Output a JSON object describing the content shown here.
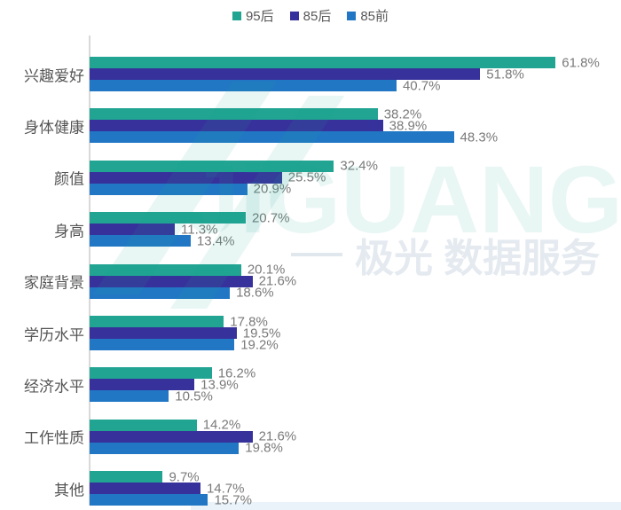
{
  "chart_data": {
    "type": "bar",
    "orientation": "horizontal",
    "title": "",
    "categories": [
      "兴趣爱好",
      "身体健康",
      "颜值",
      "身高",
      "家庭背景",
      "学历水平",
      "经济水平",
      "工作性质",
      "其他"
    ],
    "series": [
      {
        "name": "95后",
        "color": "#21a492",
        "values": [
          61.8,
          38.2,
          32.4,
          20.7,
          20.1,
          17.8,
          16.2,
          14.2,
          9.7
        ]
      },
      {
        "name": "85后",
        "color": "#37329b",
        "values": [
          51.8,
          38.9,
          25.5,
          11.3,
          21.6,
          19.5,
          13.9,
          21.6,
          14.7
        ]
      },
      {
        "name": "85前",
        "color": "#2177c4",
        "values": [
          40.7,
          48.3,
          20.9,
          13.4,
          18.6,
          19.2,
          10.5,
          19.8,
          15.7
        ]
      }
    ],
    "value_suffix": "%",
    "xlim": [
      0,
      70
    ],
    "grid": false,
    "legend_position": "top",
    "axis_line_color": "#d9d9d9",
    "value_label_color": "#7a7a7a",
    "category_label_color": "#555555"
  },
  "watermark": {
    "logo_text": "JiGUANG",
    "tagline": "极光 数据服务"
  }
}
